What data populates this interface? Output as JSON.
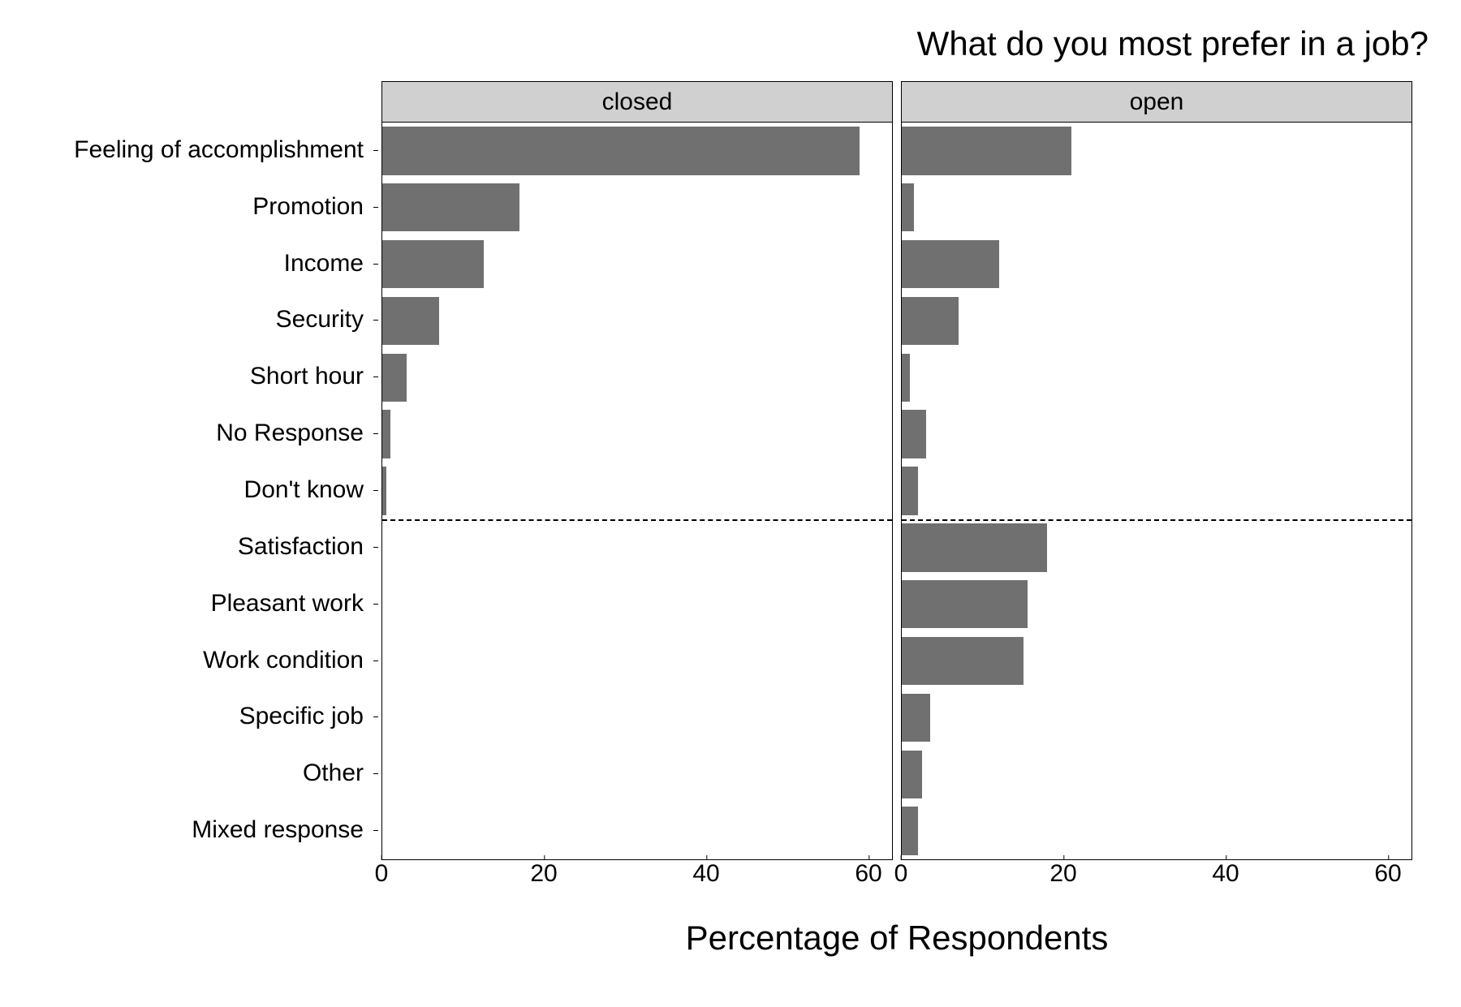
{
  "chart": {
    "type": "bar",
    "title": "What do you most prefer in a job?",
    "title_fontsize": 42,
    "title_color": "#000000",
    "xlabel": "Percentage of Respondents",
    "xlabel_fontsize": 42,
    "facet_label_fontsize": 30,
    "y_tick_fontsize": 30,
    "x_tick_fontsize": 30,
    "background_color": "#ffffff",
    "panel_border_color": "#000000",
    "facet_header_bg": "#d0d0d0",
    "bar_color": "#707070",
    "text_color": "#000000",
    "xlim": [
      0,
      63
    ],
    "x_ticks": [
      0,
      20,
      40,
      60
    ],
    "divider_after_index": 7,
    "divider_dash": "8,6",
    "divider_width": 2,
    "bar_height_ratio": 0.85,
    "categories": [
      "Feeling of accomplishment",
      "Promotion",
      "Income",
      "Security",
      "Short hour",
      "No Response",
      "Don't know",
      "Satisfaction",
      "Pleasant work",
      "Work condition",
      "Specific job",
      "Other",
      "Mixed response"
    ],
    "panels": [
      {
        "label": "closed",
        "values": [
          59,
          17,
          12.5,
          7,
          3,
          1,
          0.5,
          0,
          0,
          0,
          0,
          0,
          0
        ]
      },
      {
        "label": "open",
        "values": [
          21,
          1.5,
          12,
          7,
          1,
          3,
          2,
          18,
          15.5,
          15,
          3.5,
          2.5,
          2
        ]
      }
    ]
  }
}
